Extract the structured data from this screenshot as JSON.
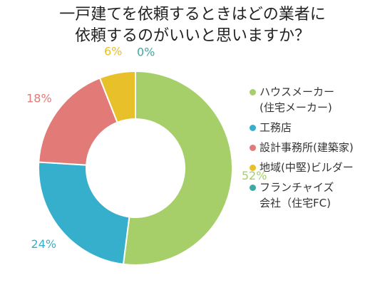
{
  "chart_data": {
    "type": "pie",
    "title": [
      "一戸建てを依頼するときはどの業者に",
      "依頼するのがいいと思いますか？"
    ],
    "categories": [
      "ハウスメーカー\n(住宅メーカー)",
      "工務店",
      "設計事務所(建築家)",
      "地域(中堅)ビルダー",
      "フランチャイズ\n会社（住宅FC)"
    ],
    "values": [
      52,
      24,
      18,
      6,
      0
    ],
    "value_labels": [
      "52%",
      "24%",
      "18%",
      "6%",
      "0%"
    ],
    "colors": [
      "#a6cf6a",
      "#36afcc",
      "#e27a78",
      "#e8c02a",
      "#3ca9a3"
    ],
    "donut": true,
    "legend_position": "right"
  }
}
